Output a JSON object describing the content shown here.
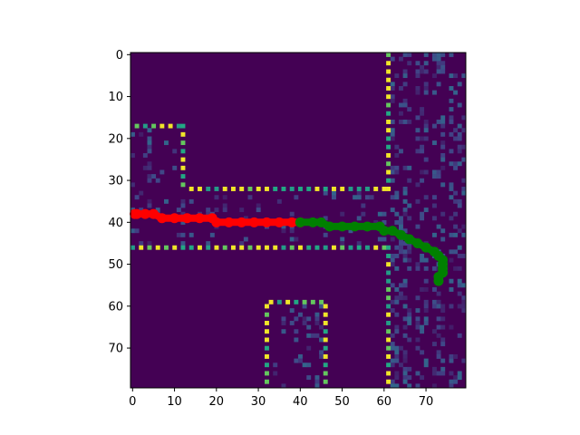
{
  "chart_data": {
    "type": "heatmap",
    "title": "",
    "xlabel": "",
    "ylabel": "",
    "xlim": [
      -0.5,
      79.5
    ],
    "ylim": [
      79.5,
      -0.5
    ],
    "x_ticks": [
      0,
      10,
      20,
      30,
      40,
      50,
      60,
      70
    ],
    "y_ticks": [
      0,
      10,
      20,
      30,
      40,
      50,
      60,
      70
    ],
    "x_tick_labels": [
      "0",
      "10",
      "20",
      "30",
      "40",
      "50",
      "60",
      "70"
    ],
    "y_tick_labels": [
      "0",
      "10",
      "20",
      "30",
      "40",
      "50",
      "60",
      "70"
    ],
    "colormap": "viridis",
    "background_color": "#440154",
    "value_range": [
      0,
      1
    ],
    "walls": [
      {
        "name": "room-left-wall",
        "x": [
          0,
          12
        ],
        "y": [
          17,
          32
        ]
      },
      {
        "name": "corridor-top-wall",
        "x": [
          12,
          61
        ],
        "y": [
          32,
          32
        ]
      },
      {
        "name": "corridor-bottom-wall",
        "x": [
          0,
          61
        ],
        "y": [
          46,
          46
        ]
      },
      {
        "name": "vertical-wall-upper",
        "x": [
          61,
          61
        ],
        "y": [
          0,
          32
        ]
      },
      {
        "name": "vertical-wall-lower",
        "x": [
          61,
          61
        ],
        "y": [
          46,
          79
        ]
      },
      {
        "name": "bottom-room",
        "x": [
          32,
          46
        ],
        "y": [
          59,
          79
        ]
      }
    ],
    "series": [
      {
        "name": "red-path",
        "color": "#ff0000",
        "points": [
          [
            0.5,
            38
          ],
          [
            1,
            38
          ],
          [
            3,
            38
          ],
          [
            5,
            38
          ],
          [
            7,
            39
          ],
          [
            10,
            39
          ],
          [
            13,
            39
          ],
          [
            16,
            39
          ],
          [
            19,
            39
          ],
          [
            20,
            40
          ],
          [
            23,
            40
          ],
          [
            26,
            40
          ],
          [
            29,
            40
          ],
          [
            32,
            40
          ],
          [
            35,
            40
          ],
          [
            38,
            40
          ],
          [
            40,
            40
          ]
        ]
      },
      {
        "name": "green-path",
        "color": "#008000",
        "points": [
          [
            40,
            40
          ],
          [
            43,
            40
          ],
          [
            45,
            40
          ],
          [
            47,
            41
          ],
          [
            50,
            41
          ],
          [
            53,
            41
          ],
          [
            56,
            41
          ],
          [
            59,
            41
          ],
          [
            60,
            42
          ],
          [
            62,
            42
          ],
          [
            64,
            43
          ],
          [
            66,
            44
          ],
          [
            68,
            45
          ],
          [
            70,
            46
          ],
          [
            72,
            47
          ],
          [
            73,
            48
          ],
          [
            74,
            49
          ],
          [
            74,
            50
          ],
          [
            74,
            51
          ],
          [
            74,
            52
          ],
          [
            73,
            53
          ],
          [
            73,
            54
          ]
        ]
      }
    ]
  }
}
